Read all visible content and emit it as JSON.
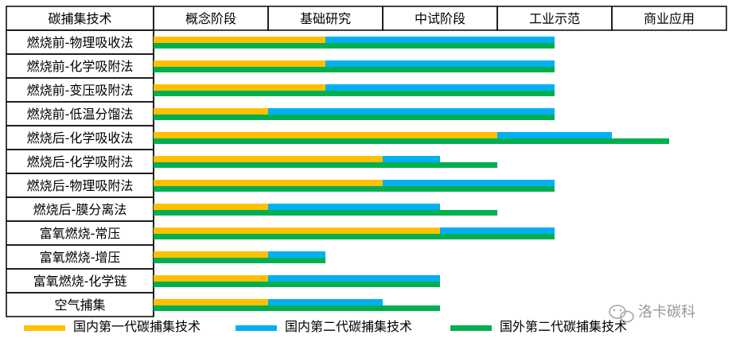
{
  "chart_data": {
    "type": "bar",
    "orientation": "horizontal",
    "stage_axis": {
      "header_label": "碳捕集技术",
      "stages": [
        "概念阶段",
        "基础研究",
        "中试阶段",
        "工业示范",
        "商业应用"
      ],
      "range": [
        0,
        5
      ]
    },
    "categories": [
      "燃烧前-物理吸收法",
      "燃烧前-化学吸附法",
      "燃烧前-变压吸附法",
      "燃烧前-低温分馏法",
      "燃烧后-化学吸收法",
      "燃烧后-化学吸附法",
      "燃烧后-物理吸附法",
      "燃烧后-膜分离法",
      "富氧燃烧-常压",
      "富氧燃烧-增压",
      "富氧燃烧-化学链",
      "空气捕集"
    ],
    "series": [
      {
        "name": "国内第一代碳捕集技术",
        "color": "#FFC000",
        "values": [
          1.5,
          1.5,
          1.5,
          1.0,
          3.0,
          2.0,
          2.0,
          1.0,
          2.5,
          1.0,
          1.0,
          1.0
        ]
      },
      {
        "name": "国内第二代碳捕集技术",
        "color": "#00B0F0",
        "values": [
          3.5,
          3.5,
          3.5,
          3.5,
          4.0,
          2.5,
          3.5,
          2.5,
          3.5,
          1.5,
          2.5,
          2.0
        ]
      },
      {
        "name": "国外第二代碳捕集技术",
        "color": "#00B050",
        "values": [
          3.5,
          3.5,
          3.5,
          3.5,
          4.5,
          3.0,
          3.5,
          3.0,
          3.5,
          1.5,
          2.5,
          2.5
        ]
      }
    ],
    "legend_position": "bottom",
    "grid": false
  },
  "watermark": {
    "icon": "wechat-icon",
    "text": "洛卡碳科"
  }
}
